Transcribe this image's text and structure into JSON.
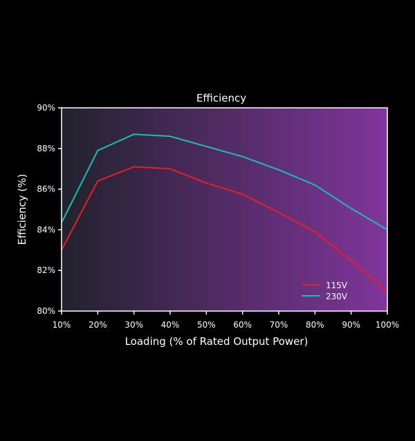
{
  "chart_data": {
    "type": "line",
    "title": "Efficiency",
    "xlabel": "Loading (% of Rated Output Power)",
    "ylabel": "Efficiency (%)",
    "x": [
      10,
      20,
      30,
      40,
      50,
      60,
      70,
      80,
      90,
      100
    ],
    "x_tick_labels": [
      "10%",
      "20%",
      "30%",
      "40%",
      "50%",
      "60%",
      "70%",
      "80%",
      "90%",
      "100%"
    ],
    "y_ticks": [
      80,
      82,
      84,
      86,
      88,
      90
    ],
    "y_tick_labels": [
      "80%",
      "82%",
      "84%",
      "86%",
      "88%",
      "90%"
    ],
    "xlim": [
      10,
      100
    ],
    "ylim": [
      80,
      90
    ],
    "grid": false,
    "legend_position": "bottom-right",
    "background_gradient": [
      "#22222e",
      "#80359b"
    ],
    "series": [
      {
        "name": "115V",
        "color": "#ee1c25",
        "values": [
          83.0,
          86.4,
          87.1,
          87.0,
          86.3,
          85.75,
          84.85,
          83.9,
          82.5,
          80.95
        ]
      },
      {
        "name": "230V",
        "color": "#17c0b0",
        "values": [
          84.35,
          87.9,
          88.7,
          88.6,
          88.1,
          87.6,
          86.95,
          86.2,
          85.05,
          84.0
        ]
      }
    ]
  }
}
